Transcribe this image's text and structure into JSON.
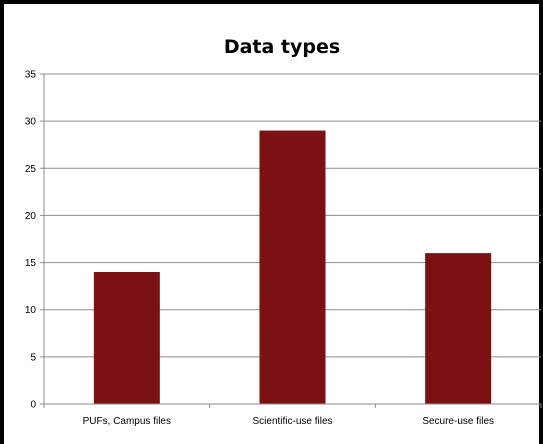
{
  "chart_data": {
    "type": "bar",
    "title": "Data types",
    "xlabel": "",
    "ylabel": "",
    "categories": [
      "PUFs, Campus files",
      "Scientific-use files",
      "Secure-use files"
    ],
    "values": [
      14,
      29,
      16
    ],
    "ylim": [
      0,
      35
    ],
    "yticks": [
      0,
      5,
      10,
      15,
      20,
      25,
      30,
      35
    ],
    "grid": true,
    "legend": "none"
  },
  "colors": {
    "bar": "#7b1113",
    "frame": "#000000",
    "grid": "#8c8c8c",
    "axis": "#8c8c8c"
  }
}
